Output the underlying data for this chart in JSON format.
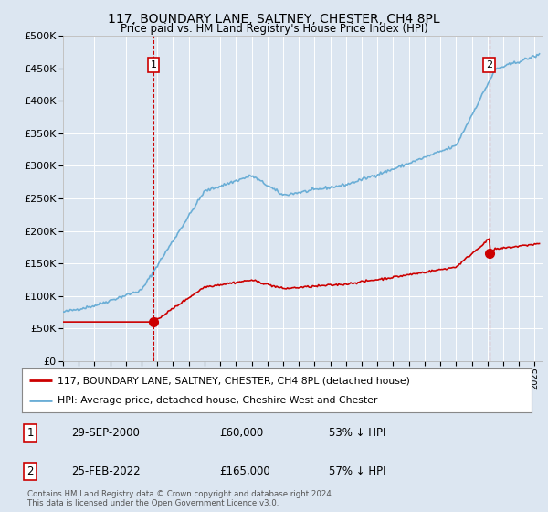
{
  "title": "117, BOUNDARY LANE, SALTNEY, CHESTER, CH4 8PL",
  "subtitle": "Price paid vs. HM Land Registry's House Price Index (HPI)",
  "background_color": "#dce6f1",
  "plot_bg_color": "#dce6f1",
  "ylim": [
    0,
    500000
  ],
  "yticks": [
    0,
    50000,
    100000,
    150000,
    200000,
    250000,
    300000,
    350000,
    400000,
    450000,
    500000
  ],
  "xlim_start": 1995.0,
  "xlim_end": 2025.5,
  "sale1_date": 2000.75,
  "sale1_price": 60000,
  "sale2_date": 2022.12,
  "sale2_price": 165000,
  "hpi_color": "#6baed6",
  "sold_color": "#cc0000",
  "legend_line1": "117, BOUNDARY LANE, SALTNEY, CHESTER, CH4 8PL (detached house)",
  "legend_line2": "HPI: Average price, detached house, Cheshire West and Chester",
  "footer1": "Contains HM Land Registry data © Crown copyright and database right 2024.",
  "footer2": "This data is licensed under the Open Government Licence v3.0.",
  "annot1_date": "29-SEP-2000",
  "annot1_price": "£60,000",
  "annot1_hpi": "53% ↓ HPI",
  "annot2_date": "25-FEB-2022",
  "annot2_price": "£165,000",
  "annot2_hpi": "57% ↓ HPI"
}
